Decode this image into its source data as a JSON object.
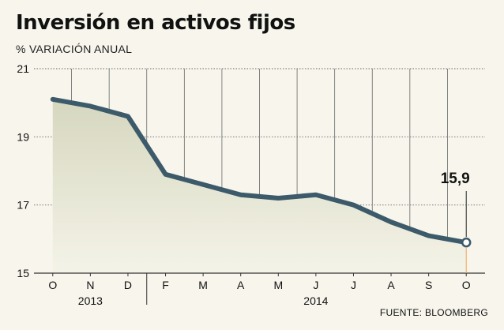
{
  "header": {
    "title": "Inversión en activos fijos",
    "subtitle": "% VARIACIÓN ANUAL"
  },
  "footer": {
    "source": "FUENTE: BLOOMBERG"
  },
  "chart_data": {
    "type": "area",
    "title": "Inversión en activos fijos",
    "subtitle": "% VARIACIÓN ANUAL",
    "xlabel": "",
    "ylabel": "",
    "categories": [
      "O",
      "N",
      "D",
      "F",
      "M",
      "A",
      "M",
      "J",
      "J",
      "A",
      "S",
      "O"
    ],
    "year_labels": [
      {
        "label": "2013",
        "from": 0,
        "to": 2
      },
      {
        "label": "2014",
        "from": 3,
        "to": 11
      }
    ],
    "values": [
      20.1,
      19.9,
      19.6,
      17.9,
      17.6,
      17.3,
      17.2,
      17.3,
      17.0,
      16.5,
      16.1,
      15.9
    ],
    "ylim": [
      15,
      21
    ],
    "yticks": [
      15,
      17,
      19,
      21
    ],
    "grid": true,
    "annotation": {
      "index": 11,
      "text": "15,9"
    },
    "colors": {
      "line": "#3c5a6a",
      "area_top": "#d6d7bf",
      "area_bottom": "#f4f3e8",
      "grid": "#666666",
      "background": "#f7f5ec"
    }
  }
}
